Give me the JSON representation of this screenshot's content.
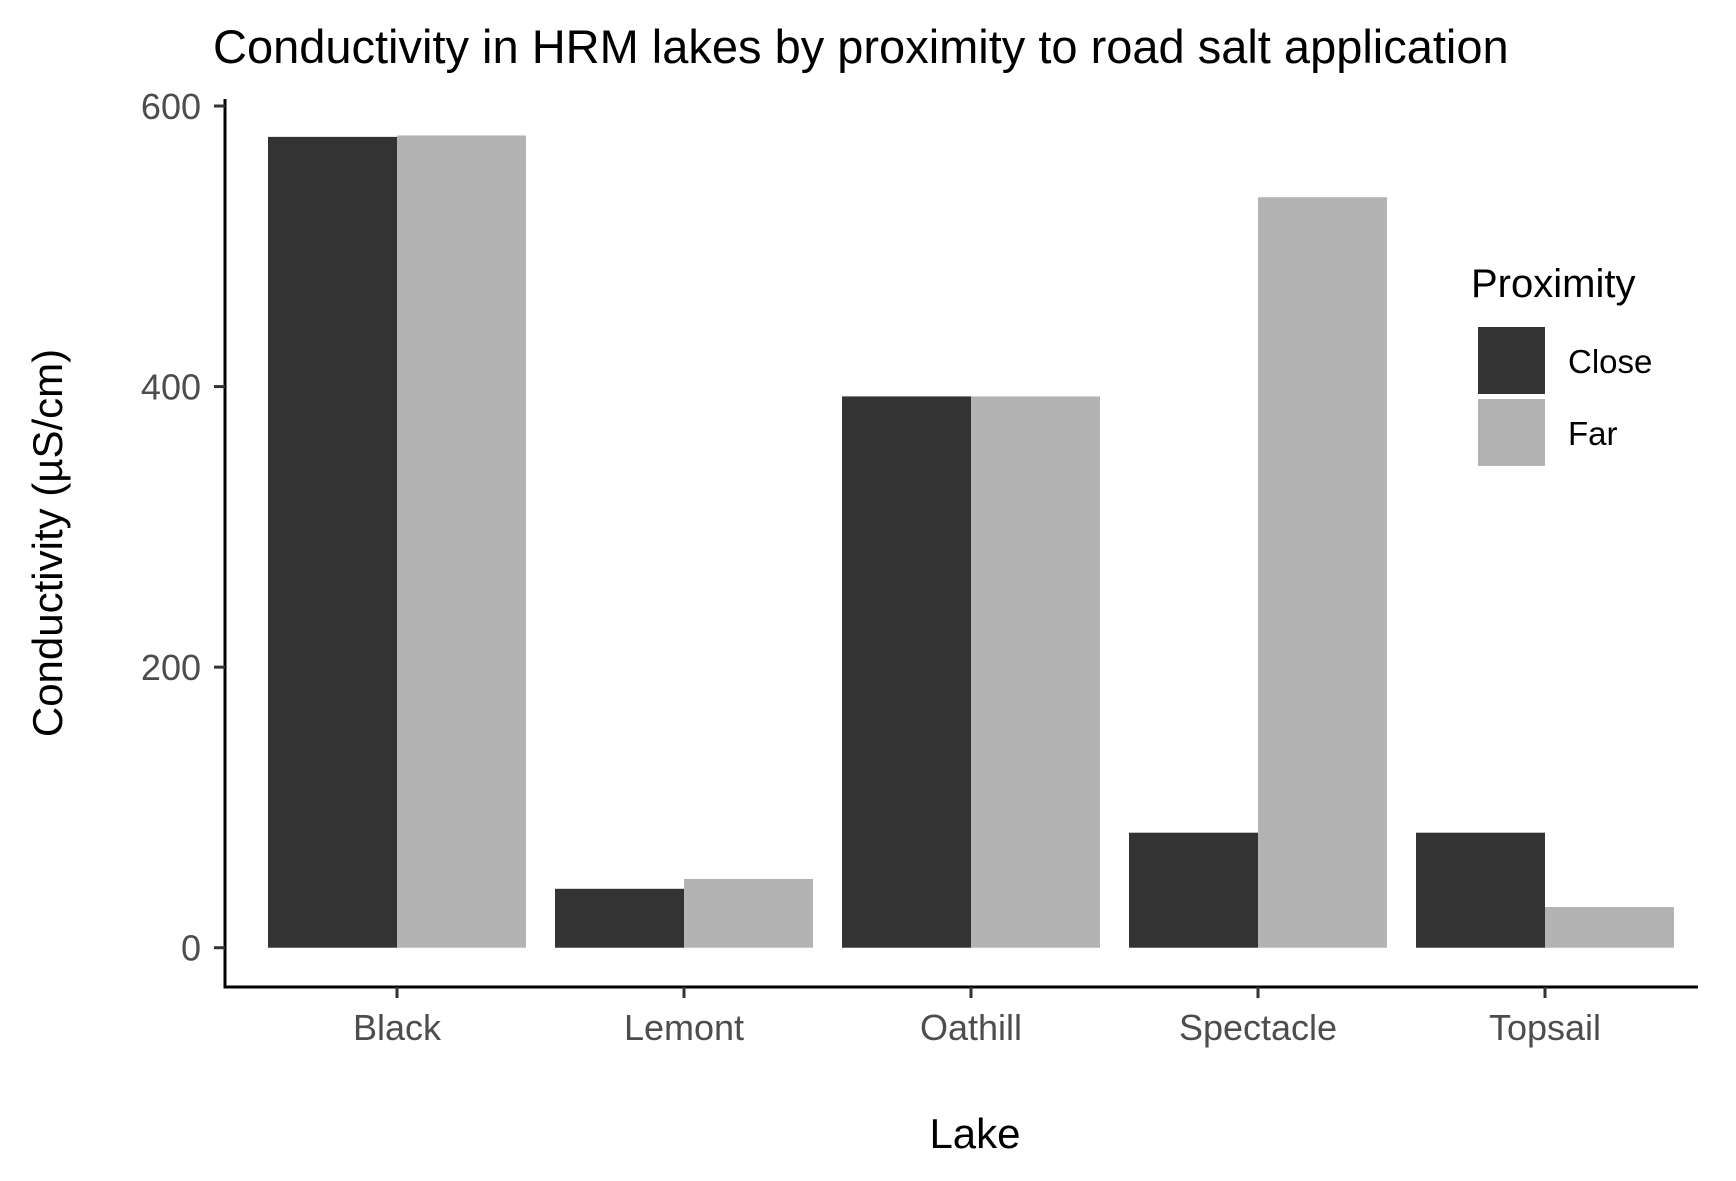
{
  "chart_data": {
    "type": "bar",
    "title": "Conductivity in HRM lakes by proximity to road salt application",
    "xlabel": "Lake",
    "ylabel": "Conductivity (µS/cm)",
    "categories": [
      "Black",
      "Lemont",
      "Oathill",
      "Spectacle",
      "Topsail"
    ],
    "series": [
      {
        "name": "Close",
        "color": "#333333",
        "values": [
          578,
          42,
          393,
          82,
          82
        ]
      },
      {
        "name": "Far",
        "color": "#b3b3b3",
        "values": [
          579,
          49,
          393,
          535,
          29
        ]
      }
    ],
    "ylim": [
      -28,
      605
    ],
    "yticks": [
      0,
      200,
      400,
      600
    ],
    "grid": false,
    "legend": {
      "title": "Proximity",
      "placement": "right"
    }
  }
}
